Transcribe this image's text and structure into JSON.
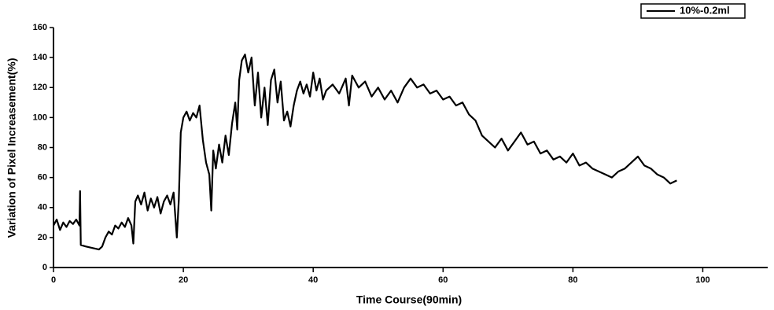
{
  "chart_data": {
    "type": "line",
    "x_label": "Time Course(90min)",
    "y_label": "Variation of Pixel Increasement(%)",
    "xlim": [
      0,
      110
    ],
    "xticks": [
      0,
      20,
      40,
      60,
      80,
      100
    ],
    "ylim": [
      0,
      160
    ],
    "yticks": [
      0,
      20,
      40,
      60,
      80,
      100,
      120,
      140,
      160
    ],
    "legend": "top-right",
    "series": [
      {
        "name": "10%-0.2ml",
        "color": "#000000",
        "x": [
          0,
          0.5,
          1,
          1.5,
          2,
          2.5,
          3,
          3.5,
          4,
          4.1,
          4.2,
          5,
          6,
          7,
          7.5,
          8,
          8.5,
          9,
          9.5,
          10,
          10.5,
          11,
          11.5,
          12,
          12.3,
          12.6,
          13,
          13.5,
          14,
          14.5,
          15,
          15.5,
          16,
          16.5,
          17,
          17.5,
          18,
          18.5,
          19,
          19.3,
          19.6,
          20,
          20.5,
          21,
          21.5,
          22,
          22.5,
          23,
          23.5,
          24,
          24.3,
          24.6,
          25,
          25.5,
          26,
          26.5,
          27,
          27.5,
          28,
          28.3,
          28.6,
          29,
          29.5,
          30,
          30.5,
          31,
          31.5,
          32,
          32.5,
          33,
          33.5,
          34,
          34.5,
          35,
          35.5,
          36,
          36.5,
          37,
          37.5,
          38,
          38.5,
          39,
          39.5,
          40,
          40.5,
          41,
          41.5,
          42,
          43,
          44,
          45,
          45.5,
          46,
          47,
          48,
          49,
          50,
          51,
          52,
          53,
          54,
          55,
          56,
          57,
          58,
          59,
          60,
          61,
          62,
          63,
          64,
          65,
          66,
          67,
          68,
          69,
          70,
          71,
          72,
          73,
          74,
          75,
          76,
          77,
          78,
          79,
          80,
          81,
          82,
          83,
          84,
          85,
          86,
          87,
          88,
          89,
          90,
          91,
          92,
          93,
          94,
          95,
          96
        ],
        "values": [
          28,
          32,
          25,
          30,
          27,
          31,
          29,
          32,
          28,
          51,
          15,
          14,
          13,
          12,
          14,
          20,
          24,
          22,
          28,
          26,
          30,
          27,
          33,
          28,
          16,
          44,
          48,
          42,
          50,
          38,
          46,
          40,
          47,
          36,
          44,
          48,
          42,
          50,
          20,
          45,
          90,
          100,
          104,
          98,
          103,
          100,
          108,
          85,
          70,
          62,
          38,
          78,
          66,
          82,
          70,
          88,
          75,
          96,
          110,
          92,
          125,
          138,
          142,
          130,
          140,
          108,
          130,
          100,
          120,
          95,
          125,
          132,
          110,
          124,
          98,
          104,
          94,
          108,
          118,
          124,
          116,
          122,
          114,
          130,
          118,
          126,
          112,
          118,
          122,
          116,
          126,
          108,
          128,
          120,
          124,
          114,
          120,
          112,
          118,
          110,
          120,
          126,
          120,
          122,
          116,
          118,
          112,
          114,
          108,
          110,
          102,
          98,
          88,
          84,
          80,
          86,
          78,
          84,
          90,
          82,
          84,
          76,
          78,
          72,
          74,
          70,
          76,
          68,
          70,
          66,
          64,
          62,
          60,
          64,
          66,
          70,
          74,
          68,
          66,
          62,
          60,
          56,
          58
        ]
      }
    ]
  }
}
